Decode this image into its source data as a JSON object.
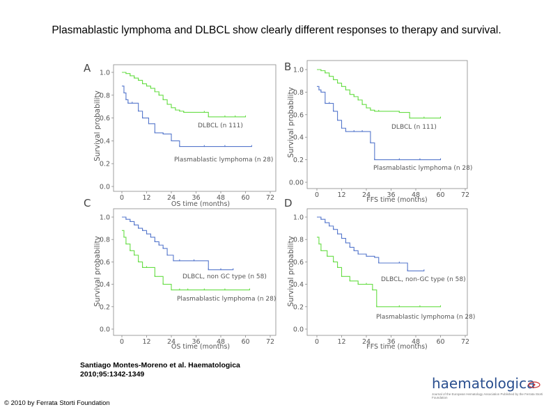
{
  "title": "Plasmablastic lymphoma and DLBCL show clearly different responses to therapy and survival.",
  "citation": {
    "line1": "Santiago Montes-Moreno et al. Haematologica",
    "line2": "2010;95:1342-1349"
  },
  "copyright": "© 2010 by Ferrata Storti Foundation",
  "logo": {
    "wordmark": "haematologica",
    "tagline": "Journal of the European Hematology Association Published by the Ferrata Storti Foundation"
  },
  "colors": {
    "green": "#66dd44",
    "blue": "#5577cc",
    "axis": "#888888",
    "text": "#555555"
  },
  "chart_data": [
    {
      "panel": "A",
      "type": "line",
      "step": true,
      "xlabel": "OS time (months)",
      "ylabel": "Survival probability",
      "xticks": [
        0,
        12,
        24,
        36,
        48,
        60,
        72
      ],
      "yticks": [
        "0.0",
        "0.2",
        "0.4",
        "0.6",
        "0.8",
        "1.0"
      ],
      "xlim": [
        0,
        72
      ],
      "ylim": [
        0,
        1
      ],
      "series": [
        {
          "name": "DLBCL (n 111)",
          "color": "#66dd44",
          "x": [
            0,
            2,
            4,
            6,
            8,
            10,
            12,
            14,
            16,
            18,
            20,
            22,
            24,
            26,
            28,
            30,
            40,
            42,
            50,
            55,
            60
          ],
          "y": [
            1.0,
            0.99,
            0.97,
            0.95,
            0.93,
            0.9,
            0.88,
            0.86,
            0.83,
            0.8,
            0.76,
            0.72,
            0.69,
            0.67,
            0.66,
            0.65,
            0.65,
            0.61,
            0.61,
            0.61,
            0.61
          ]
        },
        {
          "name": "Plasmablastic lymphoma (n 28)",
          "color": "#5577cc",
          "x": [
            0,
            1,
            2,
            3,
            5,
            8,
            10,
            13,
            16,
            20,
            24,
            28,
            40,
            50,
            63
          ],
          "y": [
            0.88,
            0.82,
            0.76,
            0.73,
            0.73,
            0.66,
            0.6,
            0.55,
            0.47,
            0.46,
            0.4,
            0.35,
            0.35,
            0.35,
            0.35
          ]
        }
      ]
    },
    {
      "panel": "B",
      "type": "line",
      "step": true,
      "xlabel": "FFS time (months)",
      "ylabel": "Survival probability",
      "xticks": [
        0,
        12,
        24,
        36,
        48,
        60,
        72
      ],
      "yticks": [
        "0.00",
        "0.2",
        "0.4",
        "0.6",
        "0.8",
        "1.0"
      ],
      "xlim": [
        0,
        72
      ],
      "ylim": [
        0,
        1
      ],
      "series": [
        {
          "name": "DLBCL (n 111)",
          "color": "#66dd44",
          "x": [
            0,
            2,
            4,
            6,
            8,
            10,
            12,
            14,
            16,
            18,
            20,
            22,
            24,
            26,
            28,
            30,
            40,
            45,
            52,
            60
          ],
          "y": [
            1.0,
            0.99,
            0.97,
            0.94,
            0.91,
            0.88,
            0.85,
            0.82,
            0.78,
            0.76,
            0.73,
            0.69,
            0.66,
            0.64,
            0.63,
            0.63,
            0.62,
            0.57,
            0.57,
            0.57
          ]
        },
        {
          "name": "Plasmablastic lymphoma (n 28)",
          "color": "#5577cc",
          "x": [
            0,
            1,
            2,
            4,
            6,
            8,
            10,
            12,
            14,
            18,
            22,
            26,
            28,
            40,
            50,
            60
          ],
          "y": [
            0.85,
            0.82,
            0.8,
            0.7,
            0.7,
            0.63,
            0.55,
            0.48,
            0.45,
            0.45,
            0.45,
            0.35,
            0.2,
            0.2,
            0.2,
            0.2
          ]
        }
      ]
    },
    {
      "panel": "C",
      "type": "line",
      "step": true,
      "xlabel": "OS time (months)",
      "ylabel": "Survival probability",
      "xticks": [
        0,
        12,
        24,
        36,
        48,
        60,
        72
      ],
      "yticks": [
        "0.0",
        "0.2",
        "0.4",
        "0.6",
        "0.8",
        "1.0"
      ],
      "xlim": [
        0,
        72
      ],
      "ylim": [
        0,
        1
      ],
      "series": [
        {
          "name": "DLBCL, non GC type (n 58)",
          "color": "#5577cc",
          "x": [
            0,
            2,
            4,
            6,
            8,
            10,
            12,
            14,
            16,
            18,
            20,
            22,
            25,
            28,
            35,
            42,
            48,
            54
          ],
          "y": [
            1.0,
            0.98,
            0.96,
            0.93,
            0.9,
            0.88,
            0.85,
            0.82,
            0.78,
            0.75,
            0.72,
            0.66,
            0.61,
            0.61,
            0.61,
            0.53,
            0.53,
            0.53
          ]
        },
        {
          "name": "Plasmablastic lymphoma (n 28)",
          "color": "#66dd44",
          "x": [
            0,
            1,
            2,
            4,
            6,
            8,
            10,
            12,
            16,
            20,
            24,
            28,
            32,
            40,
            50,
            62
          ],
          "y": [
            0.88,
            0.82,
            0.76,
            0.7,
            0.66,
            0.6,
            0.55,
            0.55,
            0.47,
            0.4,
            0.35,
            0.35,
            0.35,
            0.35,
            0.35,
            0.35
          ]
        }
      ]
    },
    {
      "panel": "D",
      "type": "line",
      "step": true,
      "xlabel": "FFS time (months)",
      "ylabel": "Survival probability",
      "xticks": [
        0,
        12,
        24,
        36,
        48,
        60,
        72
      ],
      "yticks": [
        "0.0",
        "0.2",
        "0.4",
        "0.6",
        "0.8",
        "1.0"
      ],
      "xlim": [
        0,
        72
      ],
      "ylim": [
        0,
        1
      ],
      "series": [
        {
          "name": "DLBCL, non-GC type (n 58)",
          "color": "#5577cc",
          "x": [
            0,
            2,
            4,
            6,
            8,
            10,
            12,
            14,
            16,
            18,
            20,
            24,
            28,
            30,
            40,
            44,
            52
          ],
          "y": [
            1.0,
            0.98,
            0.95,
            0.92,
            0.89,
            0.85,
            0.81,
            0.77,
            0.73,
            0.7,
            0.67,
            0.65,
            0.64,
            0.59,
            0.59,
            0.52,
            0.52
          ]
        },
        {
          "name": "Plasmablastic lymphoma (n 28)",
          "color": "#66dd44",
          "x": [
            0,
            1,
            2,
            5,
            8,
            10,
            12,
            16,
            20,
            24,
            27,
            29,
            40,
            50,
            60
          ],
          "y": [
            0.82,
            0.76,
            0.7,
            0.65,
            0.6,
            0.55,
            0.47,
            0.43,
            0.4,
            0.4,
            0.35,
            0.2,
            0.2,
            0.2,
            0.2
          ]
        }
      ]
    }
  ]
}
